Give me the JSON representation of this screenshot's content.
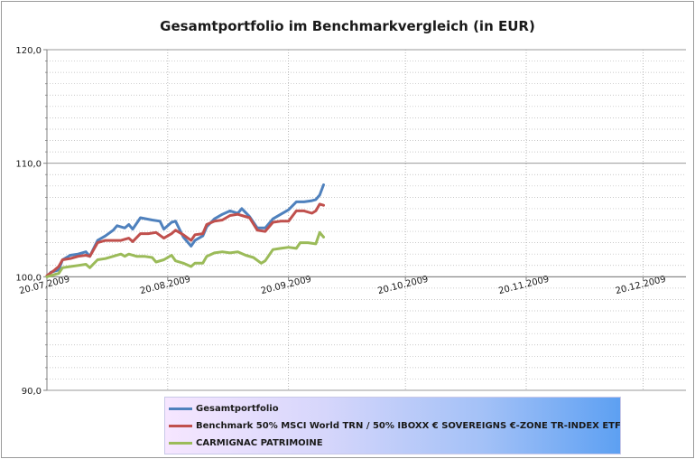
{
  "chart_data": {
    "type": "line",
    "title": "Gesamtportfolio  im Benchmarkvergleich  (in EUR)",
    "ylim": [
      90,
      120
    ],
    "y_ticks": [
      "120,0",
      "110,0",
      "100,0",
      "90,0"
    ],
    "y_tick_values": [
      120,
      110,
      100,
      90
    ],
    "x_range": [
      "2009-07-20",
      "2009-12-31"
    ],
    "x_ticks": [
      {
        "label": "20.07.2009",
        "date": "2009-07-20"
      },
      {
        "label": "20.08.2009",
        "date": "2009-08-20"
      },
      {
        "label": "20.09.2009",
        "date": "2009-09-20"
      },
      {
        "label": "20.10.2009",
        "date": "2009-10-20"
      },
      {
        "label": "20.11.2009",
        "date": "2009-11-20"
      },
      {
        "label": "20.12.2009",
        "date": "2009-12-20"
      }
    ],
    "grid": true,
    "legend_position": "bottom",
    "series": [
      {
        "name": "Gesamtportfolio",
        "color": "#4f81bd",
        "points": [
          [
            "2009-07-20",
            100.0
          ],
          [
            "2009-07-21",
            100.4
          ],
          [
            "2009-07-23",
            100.6
          ],
          [
            "2009-07-24",
            101.5
          ],
          [
            "2009-07-26",
            101.9
          ],
          [
            "2009-07-28",
            102.0
          ],
          [
            "2009-07-30",
            102.2
          ],
          [
            "2009-07-31",
            101.8
          ],
          [
            "2009-08-02",
            103.2
          ],
          [
            "2009-08-04",
            103.6
          ],
          [
            "2009-08-06",
            104.1
          ],
          [
            "2009-08-07",
            104.5
          ],
          [
            "2009-08-09",
            104.3
          ],
          [
            "2009-08-10",
            104.6
          ],
          [
            "2009-08-11",
            104.2
          ],
          [
            "2009-08-13",
            105.2
          ],
          [
            "2009-08-16",
            105.0
          ],
          [
            "2009-08-18",
            104.9
          ],
          [
            "2009-08-19",
            104.2
          ],
          [
            "2009-08-21",
            104.8
          ],
          [
            "2009-08-22",
            104.9
          ],
          [
            "2009-08-24",
            103.5
          ],
          [
            "2009-08-26",
            102.7
          ],
          [
            "2009-08-27",
            103.2
          ],
          [
            "2009-08-29",
            103.6
          ],
          [
            "2009-08-30",
            104.4
          ],
          [
            "2009-09-01",
            105.1
          ],
          [
            "2009-09-03",
            105.5
          ],
          [
            "2009-09-05",
            105.8
          ],
          [
            "2009-09-07",
            105.6
          ],
          [
            "2009-09-08",
            106.0
          ],
          [
            "2009-09-10",
            105.3
          ],
          [
            "2009-09-12",
            104.3
          ],
          [
            "2009-09-14",
            104.3
          ],
          [
            "2009-09-16",
            105.1
          ],
          [
            "2009-09-18",
            105.5
          ],
          [
            "2009-09-20",
            105.9
          ],
          [
            "2009-09-22",
            106.6
          ],
          [
            "2009-09-24",
            106.6
          ],
          [
            "2009-09-26",
            106.7
          ],
          [
            "2009-09-27",
            106.8
          ],
          [
            "2009-09-28",
            107.2
          ],
          [
            "2009-09-29",
            108.1
          ]
        ]
      },
      {
        "name": "Benchmark 50%  MSCI World TRN  / 50% IBOXX € SOVEREIGNS €-ZONE TR-INDEX ETF",
        "color": "#c0504d",
        "points": [
          [
            "2009-07-20",
            100.1
          ],
          [
            "2009-07-22",
            100.6
          ],
          [
            "2009-07-23",
            100.9
          ],
          [
            "2009-07-24",
            101.5
          ],
          [
            "2009-07-26",
            101.6
          ],
          [
            "2009-07-28",
            101.8
          ],
          [
            "2009-07-30",
            101.9
          ],
          [
            "2009-07-31",
            101.8
          ],
          [
            "2009-08-02",
            103.0
          ],
          [
            "2009-08-04",
            103.2
          ],
          [
            "2009-08-06",
            103.2
          ],
          [
            "2009-08-08",
            103.2
          ],
          [
            "2009-08-10",
            103.4
          ],
          [
            "2009-08-11",
            103.1
          ],
          [
            "2009-08-13",
            103.8
          ],
          [
            "2009-08-15",
            103.8
          ],
          [
            "2009-08-17",
            103.9
          ],
          [
            "2009-08-19",
            103.4
          ],
          [
            "2009-08-21",
            103.8
          ],
          [
            "2009-08-22",
            104.1
          ],
          [
            "2009-08-24",
            103.7
          ],
          [
            "2009-08-26",
            103.2
          ],
          [
            "2009-08-27",
            103.7
          ],
          [
            "2009-08-29",
            103.8
          ],
          [
            "2009-08-30",
            104.6
          ],
          [
            "2009-09-01",
            104.9
          ],
          [
            "2009-09-03",
            105.0
          ],
          [
            "2009-09-05",
            105.4
          ],
          [
            "2009-09-07",
            105.5
          ],
          [
            "2009-09-08",
            105.4
          ],
          [
            "2009-09-10",
            105.2
          ],
          [
            "2009-09-12",
            104.1
          ],
          [
            "2009-09-14",
            104.0
          ],
          [
            "2009-09-16",
            104.8
          ],
          [
            "2009-09-18",
            104.9
          ],
          [
            "2009-09-20",
            104.9
          ],
          [
            "2009-09-22",
            105.8
          ],
          [
            "2009-09-24",
            105.8
          ],
          [
            "2009-09-26",
            105.6
          ],
          [
            "2009-09-27",
            105.8
          ],
          [
            "2009-09-28",
            106.4
          ],
          [
            "2009-09-29",
            106.3
          ]
        ]
      },
      {
        "name": "CARMIGNAC PATRIMOINE",
        "color": "#9bbb59",
        "points": [
          [
            "2009-07-20",
            100.0
          ],
          [
            "2009-07-22",
            100.2
          ],
          [
            "2009-07-23",
            100.3
          ],
          [
            "2009-07-24",
            100.8
          ],
          [
            "2009-07-26",
            100.9
          ],
          [
            "2009-07-28",
            101.0
          ],
          [
            "2009-07-30",
            101.1
          ],
          [
            "2009-07-31",
            100.8
          ],
          [
            "2009-08-02",
            101.5
          ],
          [
            "2009-08-04",
            101.6
          ],
          [
            "2009-08-06",
            101.8
          ],
          [
            "2009-08-08",
            102.0
          ],
          [
            "2009-08-09",
            101.8
          ],
          [
            "2009-08-10",
            102.0
          ],
          [
            "2009-08-12",
            101.8
          ],
          [
            "2009-08-14",
            101.8
          ],
          [
            "2009-08-16",
            101.7
          ],
          [
            "2009-08-17",
            101.3
          ],
          [
            "2009-08-19",
            101.5
          ],
          [
            "2009-08-21",
            101.9
          ],
          [
            "2009-08-22",
            101.4
          ],
          [
            "2009-08-24",
            101.2
          ],
          [
            "2009-08-26",
            100.9
          ],
          [
            "2009-08-27",
            101.2
          ],
          [
            "2009-08-29",
            101.2
          ],
          [
            "2009-08-30",
            101.8
          ],
          [
            "2009-09-01",
            102.1
          ],
          [
            "2009-09-03",
            102.2
          ],
          [
            "2009-09-05",
            102.1
          ],
          [
            "2009-09-07",
            102.2
          ],
          [
            "2009-09-09",
            101.9
          ],
          [
            "2009-09-11",
            101.7
          ],
          [
            "2009-09-13",
            101.2
          ],
          [
            "2009-09-14",
            101.4
          ],
          [
            "2009-09-16",
            102.4
          ],
          [
            "2009-09-18",
            102.5
          ],
          [
            "2009-09-20",
            102.6
          ],
          [
            "2009-09-22",
            102.5
          ],
          [
            "2009-09-23",
            103.0
          ],
          [
            "2009-09-25",
            103.0
          ],
          [
            "2009-09-27",
            102.9
          ],
          [
            "2009-09-28",
            103.9
          ],
          [
            "2009-09-29",
            103.5
          ]
        ]
      }
    ]
  }
}
